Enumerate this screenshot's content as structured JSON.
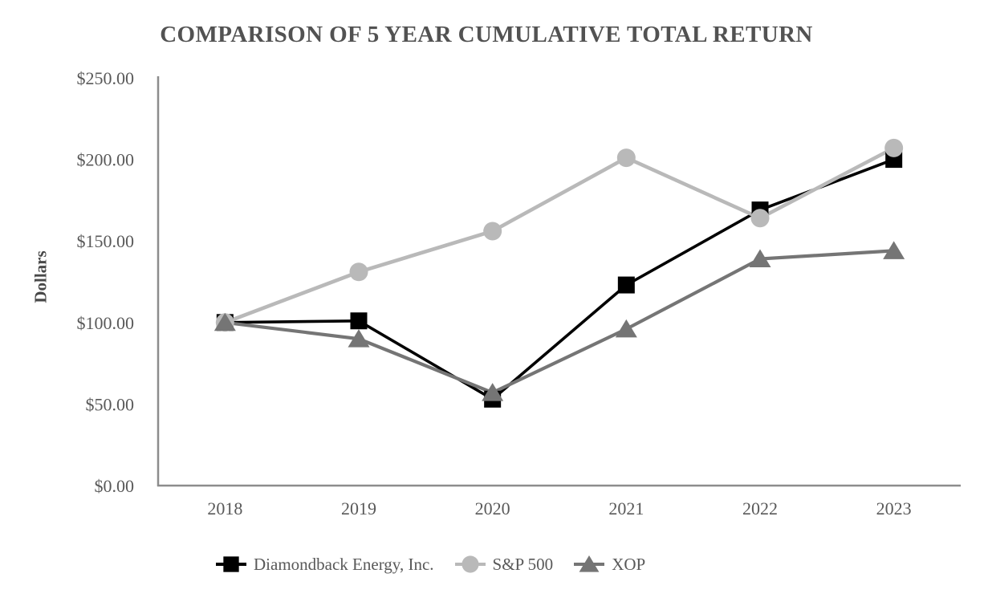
{
  "title": "COMPARISON OF 5 YEAR CUMULATIVE TOTAL RETURN",
  "chart_data": {
    "type": "line",
    "title": "COMPARISON OF 5 YEAR CUMULATIVE TOTAL RETURN",
    "xlabel": "",
    "ylabel": "Dollars",
    "categories": [
      "2018",
      "2019",
      "2020",
      "2021",
      "2022",
      "2023"
    ],
    "y_ticks": [
      "$0.00",
      "$50.00",
      "$100.00",
      "$150.00",
      "$200.00",
      "$250.00"
    ],
    "ylim": [
      0,
      250
    ],
    "y_tick_step": 50,
    "grid": false,
    "legend_position": "bottom",
    "series": [
      {
        "name": "Diamondback Energy, Inc.",
        "marker": "square",
        "color": "#000000",
        "values": [
          100,
          101,
          53,
          123,
          169,
          200
        ]
      },
      {
        "name": "S&P 500",
        "marker": "circle",
        "color": "#b9b9b9",
        "values": [
          100,
          131,
          156,
          201,
          164,
          207
        ]
      },
      {
        "name": "XOP",
        "marker": "triangle",
        "color": "#757575",
        "values": [
          100,
          90,
          57,
          96,
          139,
          144
        ]
      }
    ]
  },
  "colors": {
    "axis": "#8c8c8c",
    "tick_text": "#595959",
    "title_text": "#525252"
  }
}
